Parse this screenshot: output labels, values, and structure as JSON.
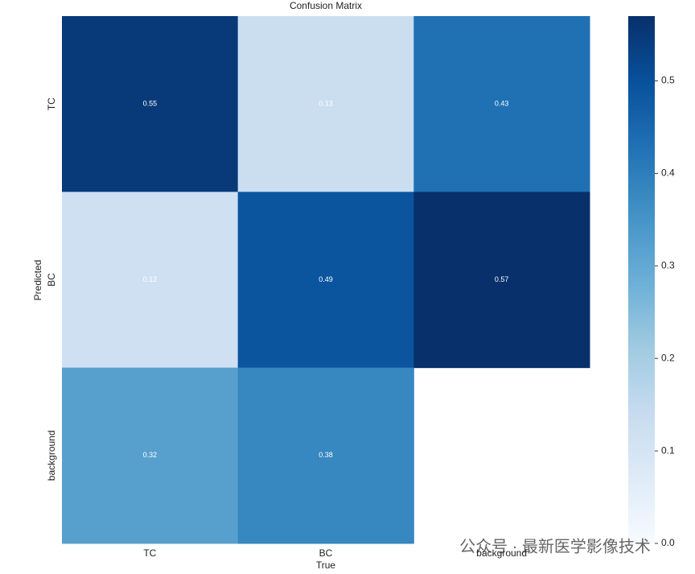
{
  "chart_data": {
    "type": "heatmap",
    "title": "Confusion Matrix",
    "x_label": "True",
    "y_label": "Predicted",
    "x_categories": [
      "TC",
      "BC",
      "background"
    ],
    "y_categories": [
      "TC",
      "BC",
      "background"
    ],
    "values": [
      [
        0.55,
        0.13,
        0.43
      ],
      [
        0.12,
        0.49,
        0.57
      ],
      [
        0.32,
        0.38,
        null
      ]
    ],
    "clim": [
      0,
      0.57
    ],
    "colorbar_ticks": [
      {
        "value": 0,
        "label": "0.0"
      },
      0.1,
      0.2,
      0.3,
      0.4,
      0.5
    ],
    "colormap": [
      "#f7fbff",
      "#deebf7",
      "#c6dbef",
      "#9ecae1",
      "#6baed6",
      "#4292c6",
      "#2171b5",
      "#08519c",
      "#08306b"
    ],
    "value_label_color": "#ffffff",
    "watermark": "公众号 · 最新医学影像技术"
  }
}
